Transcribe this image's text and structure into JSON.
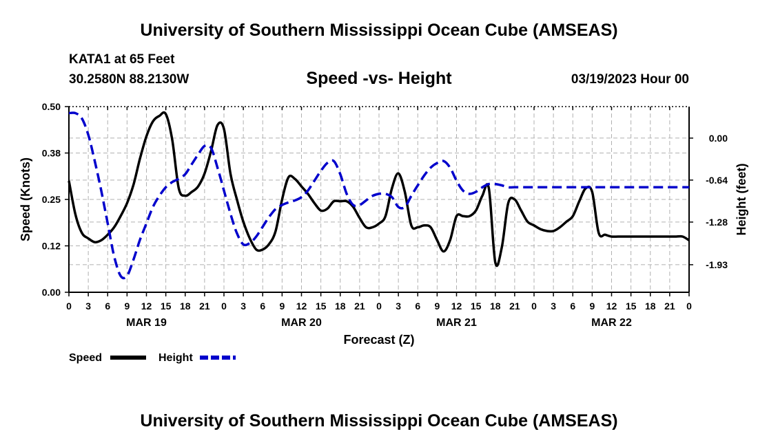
{
  "header": {
    "title": "University of Southern Mississippi Ocean Cube (AMSEAS)",
    "station": "KATA1 at 65 Feet",
    "coords": "30.2580N  88.2130W",
    "datetime": "03/19/2023 Hour 00"
  },
  "footer": {
    "title": "University of Southern Mississippi Ocean Cube (AMSEAS)"
  },
  "chart_data": {
    "type": "line",
    "title": "Speed -vs- Height",
    "xlabel": "Forecast (Z)",
    "ylabel_left": "Speed (Knots)",
    "ylabel_right": "Height (feet)",
    "x_range": [
      0,
      96
    ],
    "x_tick_step": 3,
    "x_tick_labels": [
      "0",
      "3",
      "6",
      "9",
      "12",
      "15",
      "18",
      "21",
      "0",
      "3",
      "6",
      "9",
      "12",
      "15",
      "18",
      "21",
      "0",
      "3",
      "6",
      "9",
      "12",
      "15",
      "18",
      "21",
      "0",
      "3",
      "6",
      "9",
      "12",
      "15",
      "18",
      "21",
      "0"
    ],
    "day_labels": [
      {
        "label": "MAR 19",
        "x": 12
      },
      {
        "label": "MAR 20",
        "x": 36
      },
      {
        "label": "MAR 21",
        "x": 60
      },
      {
        "label": "MAR 22",
        "x": 84
      }
    ],
    "y_left": {
      "min": 0,
      "max": 0.5,
      "ticks": [
        0.0,
        0.125,
        0.25,
        0.375,
        0.5
      ],
      "tick_labels": [
        "0.00",
        "0.12",
        "0.25",
        "0.38",
        "0.50"
      ]
    },
    "y_right": {
      "min": -2.35,
      "max": 0.48,
      "ticks": [
        0.0,
        -0.64,
        -1.28,
        -1.93
      ],
      "tick_labels": [
        "0.00",
        "-0.64",
        "-1.28",
        "-1.93"
      ]
    },
    "grid": true,
    "legend": {
      "position": "bottom-left"
    },
    "series": [
      {
        "name": "Speed",
        "axis": "left",
        "color": "#000000",
        "dash": "solid",
        "x": [
          0,
          1,
          2,
          3,
          4,
          5,
          6,
          7,
          8,
          9,
          10,
          11,
          12,
          13,
          14,
          15,
          16,
          17,
          18,
          19,
          20,
          21,
          22,
          23,
          24,
          25,
          26,
          27,
          28,
          29,
          30,
          31,
          32,
          33,
          34,
          35,
          36,
          37,
          38,
          39,
          40,
          41,
          42,
          43,
          44,
          45,
          46,
          47,
          48,
          49,
          50,
          51,
          52,
          53,
          54,
          55,
          56,
          57,
          58,
          59,
          60,
          61,
          62,
          63,
          64,
          65,
          66,
          67,
          68,
          69,
          70,
          71,
          72,
          73,
          74,
          75,
          76,
          77,
          78,
          79,
          80,
          81,
          82,
          83,
          84,
          85,
          86,
          87,
          88,
          89,
          90,
          91,
          92,
          93,
          94,
          95,
          96
        ],
        "values": [
          0.3,
          0.21,
          0.16,
          0.145,
          0.135,
          0.14,
          0.155,
          0.175,
          0.205,
          0.24,
          0.29,
          0.36,
          0.42,
          0.46,
          0.475,
          0.48,
          0.41,
          0.28,
          0.26,
          0.27,
          0.285,
          0.32,
          0.38,
          0.45,
          0.44,
          0.32,
          0.25,
          0.19,
          0.145,
          0.115,
          0.115,
          0.13,
          0.165,
          0.25,
          0.31,
          0.305,
          0.285,
          0.265,
          0.24,
          0.22,
          0.225,
          0.245,
          0.245,
          0.245,
          0.23,
          0.2,
          0.175,
          0.175,
          0.185,
          0.205,
          0.28,
          0.32,
          0.27,
          0.18,
          0.175,
          0.18,
          0.175,
          0.14,
          0.11,
          0.14,
          0.205,
          0.205,
          0.205,
          0.22,
          0.26,
          0.28,
          0.08,
          0.12,
          0.24,
          0.25,
          0.22,
          0.19,
          0.18,
          0.17,
          0.165,
          0.165,
          0.175,
          0.19,
          0.205,
          0.245,
          0.28,
          0.27,
          0.16,
          0.155,
          0.15,
          0.15,
          0.15,
          0.15,
          0.15,
          0.15,
          0.15,
          0.15,
          0.15,
          0.15,
          0.15,
          0.15,
          0.14
        ]
      },
      {
        "name": "Height",
        "axis": "right",
        "color": "#0000cc",
        "dash": "dashed",
        "x": [
          0,
          1,
          2,
          3,
          4,
          5,
          6,
          7,
          8,
          9,
          10,
          11,
          12,
          13,
          14,
          15,
          16,
          17,
          18,
          19,
          20,
          21,
          22,
          23,
          24,
          25,
          26,
          27,
          28,
          29,
          30,
          31,
          32,
          33,
          34,
          35,
          36,
          37,
          38,
          39,
          40,
          41,
          42,
          43,
          44,
          45,
          46,
          47,
          48,
          49,
          50,
          51,
          52,
          53,
          54,
          55,
          56,
          57,
          58,
          59,
          60,
          61,
          62,
          63,
          64,
          65,
          66,
          67,
          68,
          69,
          70,
          71,
          72,
          73,
          74,
          75,
          76,
          77,
          78,
          79,
          80,
          81,
          82,
          83,
          84,
          85,
          86,
          87,
          88,
          89,
          90,
          91,
          92,
          93,
          94,
          95,
          96
        ],
        "values": [
          0.38,
          0.38,
          0.3,
          0.05,
          -0.35,
          -0.8,
          -1.3,
          -1.8,
          -2.1,
          -2.1,
          -1.85,
          -1.55,
          -1.3,
          -1.05,
          -0.88,
          -0.75,
          -0.67,
          -0.62,
          -0.55,
          -0.4,
          -0.25,
          -0.12,
          -0.15,
          -0.45,
          -0.8,
          -1.15,
          -1.45,
          -1.62,
          -1.6,
          -1.5,
          -1.35,
          -1.2,
          -1.08,
          -1.02,
          -0.98,
          -0.95,
          -0.9,
          -0.8,
          -0.65,
          -0.5,
          -0.38,
          -0.35,
          -0.55,
          -0.85,
          -1.02,
          -1.02,
          -0.95,
          -0.88,
          -0.85,
          -0.85,
          -0.9,
          -1.05,
          -1.05,
          -0.88,
          -0.72,
          -0.57,
          -0.45,
          -0.38,
          -0.35,
          -0.45,
          -0.65,
          -0.8,
          -0.85,
          -0.82,
          -0.75,
          -0.7,
          -0.7,
          -0.72,
          -0.75,
          -0.75,
          -0.75,
          -0.75,
          -0.75,
          -0.75,
          -0.75,
          -0.75,
          -0.75,
          -0.75,
          -0.75,
          -0.75,
          -0.75,
          -0.75,
          -0.75,
          -0.75,
          -0.75,
          -0.75,
          -0.75,
          -0.75,
          -0.75,
          -0.75,
          -0.75,
          -0.75,
          -0.75,
          -0.75,
          -0.75,
          -0.75,
          -0.75
        ]
      }
    ]
  }
}
